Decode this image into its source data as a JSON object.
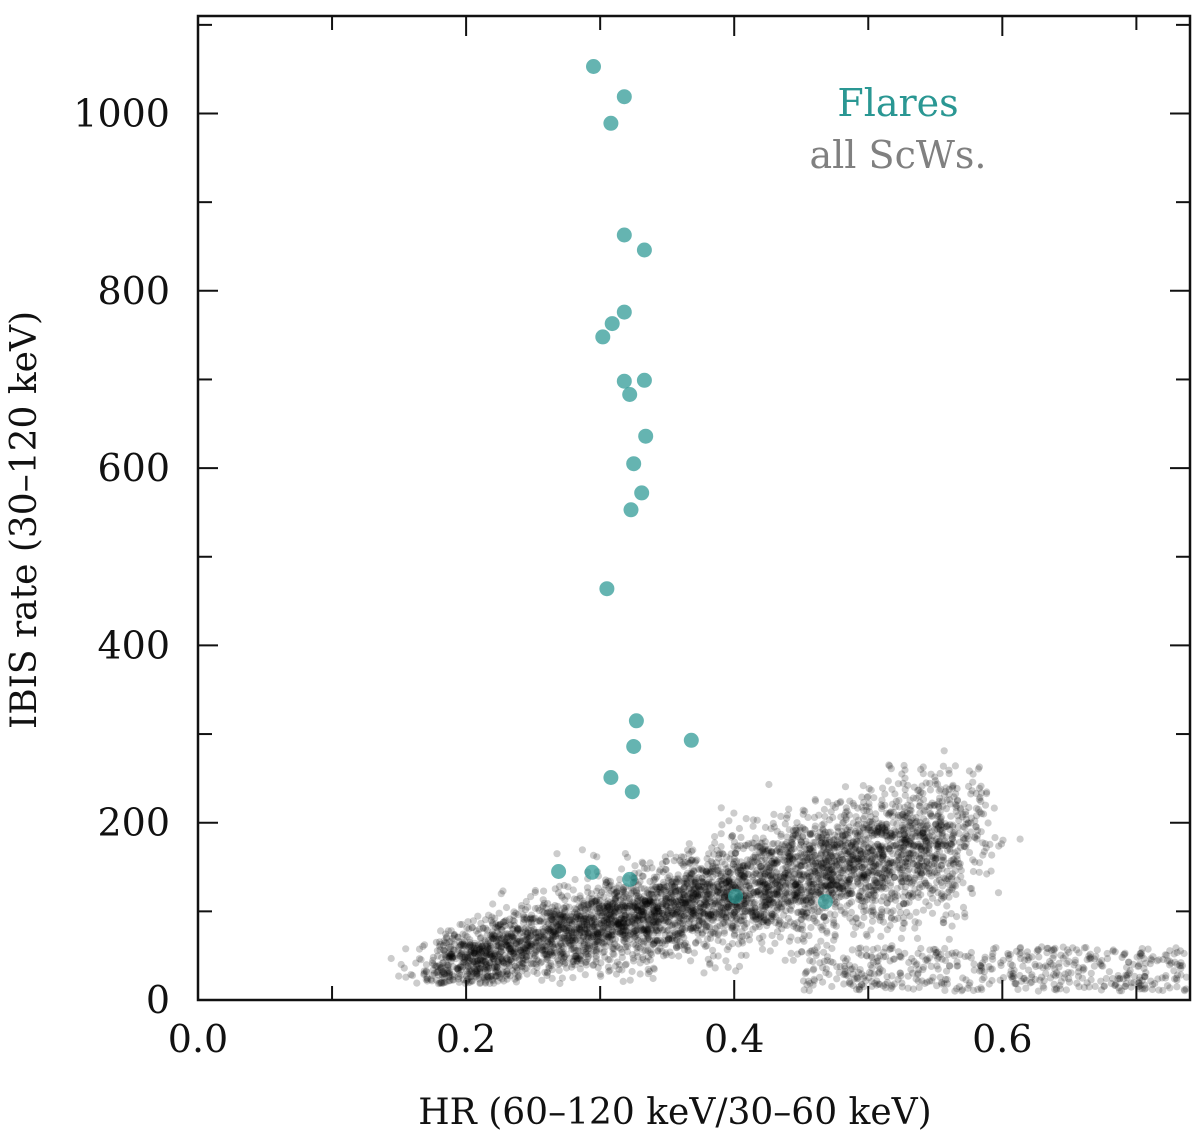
{
  "chart_data": {
    "type": "scatter",
    "xlabel": "HR (60–120 keV/30–60 keV)",
    "ylabel": "IBIS rate (30–120 keV)",
    "xlim": [
      0.0,
      0.74
    ],
    "ylim": [
      0,
      1110
    ],
    "x_ticks": [
      "0.0",
      "0.2",
      "0.4",
      "0.6"
    ],
    "y_ticks": [
      "0",
      "200",
      "400",
      "600",
      "800",
      "1000"
    ],
    "grid": false,
    "legend_position": "top-right",
    "colors": {
      "flares": "#2a9793",
      "all_scws": "#000000",
      "legend_all_scws": "#808080"
    },
    "series": [
      {
        "name": "Flares",
        "points": [
          [
            0.295,
            1053
          ],
          [
            0.318,
            1019
          ],
          [
            0.308,
            989
          ],
          [
            0.318,
            863
          ],
          [
            0.333,
            846
          ],
          [
            0.318,
            776
          ],
          [
            0.309,
            763
          ],
          [
            0.302,
            748
          ],
          [
            0.318,
            698
          ],
          [
            0.333,
            699
          ],
          [
            0.322,
            683
          ],
          [
            0.334,
            636
          ],
          [
            0.325,
            605
          ],
          [
            0.331,
            572
          ],
          [
            0.323,
            553
          ],
          [
            0.305,
            464
          ],
          [
            0.327,
            315
          ],
          [
            0.368,
            293
          ],
          [
            0.325,
            286
          ],
          [
            0.308,
            251
          ],
          [
            0.324,
            235
          ],
          [
            0.269,
            145
          ],
          [
            0.294,
            144
          ],
          [
            0.322,
            136
          ],
          [
            0.401,
            117
          ],
          [
            0.468,
            111
          ]
        ]
      },
      {
        "name": "all ScWs.",
        "distribution": {
          "count": 5200,
          "x_range": [
            0.14,
            0.74
          ],
          "y_range": [
            10,
            355
          ],
          "main_trend": {
            "x": [
              0.18,
              0.57
            ],
            "y": [
              40,
              185
            ]
          },
          "low_tail": {
            "x_range": [
              0.45,
              0.74
            ],
            "y_range": [
              10,
              60
            ]
          }
        }
      }
    ]
  }
}
